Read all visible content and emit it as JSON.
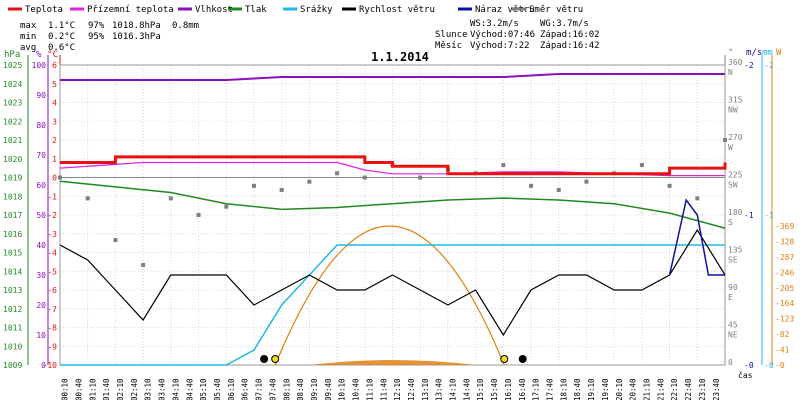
{
  "legend": [
    {
      "label": "Teplota",
      "color": "#e81010"
    },
    {
      "label": "Přízemní teplota",
      "color": "#e020e0"
    },
    {
      "label": "Vlhkost",
      "color": "#8a10c0"
    },
    {
      "label": "Tlak",
      "color": "#208a20"
    },
    {
      "label": "Srážky",
      "color": "#20b8e8"
    },
    {
      "label": "Rychlost větru",
      "color": "#000000"
    },
    {
      "label": "Náraz větru",
      "color": "#1010a0"
    },
    {
      "label": "Směr větru",
      "color": "#808080"
    }
  ],
  "stats": {
    "rows": [
      {
        "label": "max",
        "t": "1.1°C",
        "h": "97%",
        "p": "1018.8hPa",
        "r": "0.8mm"
      },
      {
        "label": "min",
        "t": "0.2°C",
        "h": "95%",
        "p": "1016.3hPa",
        "r": ""
      },
      {
        "label": "avg",
        "t": "0.6°C",
        "h": "",
        "p": "",
        "r": ""
      }
    ]
  },
  "sun": {
    "ws": "WS:3.2m/s",
    "wg": "WG:3.7m/s",
    "sun_label": "Slunce",
    "sunrise": "Východ:07:46",
    "sunset": "Západ:16:02",
    "moon_label": "Měsíc",
    "moonrise": "Východ:7:22",
    "moonset": "Západ:16:42"
  },
  "colors": {
    "temp": "#e81010",
    "ground": "#e020e0",
    "hum": "#8a10c0",
    "press": "#208a20",
    "rain": "#20b8e8",
    "wind": "#000000",
    "gust": "#1010a0",
    "dir": "#808080",
    "orange": "#e08010"
  },
  "chart_data": {
    "type": "line",
    "title": "1.1.2014",
    "xlabel": "čas",
    "x_ticks": [
      "00:10",
      "00:40",
      "01:10",
      "01:40",
      "02:10",
      "02:40",
      "03:10",
      "03:40",
      "04:10",
      "04:40",
      "05:10",
      "05:40",
      "06:10",
      "06:40",
      "07:10",
      "07:40",
      "08:10",
      "08:40",
      "09:10",
      "09:40",
      "10:10",
      "10:40",
      "11:10",
      "11:40",
      "12:10",
      "12:40",
      "13:10",
      "13:40",
      "14:10",
      "14:40",
      "15:10",
      "15:40",
      "16:10",
      "16:40",
      "17:10",
      "17:40",
      "18:10",
      "18:40",
      "19:10",
      "19:40",
      "20:10",
      "20:40",
      "21:10",
      "21:40",
      "22:10",
      "22:40",
      "23:10",
      "23:40"
    ],
    "axes": {
      "hpa": {
        "label": "hPa",
        "range": [
          1009,
          1025
        ],
        "ticks": [
          1009,
          1010,
          1011,
          1012,
          1013,
          1014,
          1015,
          1016,
          1017,
          1018,
          1019,
          1020,
          1021,
          1022,
          1023,
          1024,
          1025
        ]
      },
      "pct": {
        "label": "%",
        "range": [
          0,
          100
        ],
        "ticks": [
          0,
          10,
          20,
          30,
          40,
          50,
          60,
          70,
          80,
          90,
          100
        ]
      },
      "temp": {
        "label": "°C",
        "range": [
          -10,
          6
        ],
        "ticks": [
          -10,
          -9,
          -8,
          -7,
          -6,
          -5,
          -4,
          -3,
          -2,
          -1,
          0,
          1,
          2,
          3,
          4,
          5,
          6
        ]
      },
      "dir": {
        "label": "°",
        "ticks": [
          {
            "v": "360",
            "d": "N"
          },
          {
            "v": "315",
            "d": "NW"
          },
          {
            "v": "270",
            "d": "W"
          },
          {
            "v": "225",
            "d": "SW"
          },
          {
            "v": "180",
            "d": "S"
          },
          {
            "v": "135",
            "d": "SE"
          },
          {
            "v": "90",
            "d": "E"
          },
          {
            "v": "45",
            "d": "NE"
          },
          {
            "v": "0",
            "d": ""
          }
        ]
      },
      "ms": {
        "label": "m/s",
        "ticks": [
          "2",
          "1",
          "0"
        ]
      },
      "mm": {
        "label": "mm",
        "ticks": [
          "2",
          "1",
          "0"
        ]
      },
      "w": {
        "label": "W",
        "ticks": [
          "369",
          "328",
          "287",
          "246",
          "205",
          "164",
          "123",
          "82",
          "41",
          "0"
        ]
      }
    },
    "series": [
      {
        "name": "Teplota",
        "unit": "°C",
        "x": [
          0,
          2,
          3,
          10,
          11,
          12,
          14,
          16,
          17,
          18,
          20,
          22,
          24
        ],
        "y": [
          0.8,
          1.1,
          1.1,
          1.1,
          0.8,
          0.6,
          0.2,
          0.2,
          0.2,
          0.2,
          0.2,
          0.5,
          0.8
        ]
      },
      {
        "name": "Přízemní teplota",
        "unit": "°C",
        "x": [
          0,
          3,
          10,
          11,
          12,
          14,
          16,
          18,
          20,
          22,
          24
        ],
        "y": [
          0.5,
          0.8,
          0.8,
          0.4,
          0.2,
          0.2,
          0.3,
          0.3,
          0.2,
          0.1,
          0.1
        ]
      },
      {
        "name": "Vlhkost",
        "unit": "%",
        "x": [
          0,
          2,
          4,
          6,
          8,
          10,
          12,
          14,
          16,
          18,
          20,
          22,
          24
        ],
        "y": [
          95,
          95,
          95,
          95,
          96,
          96,
          96,
          96,
          96,
          97,
          97,
          97,
          97
        ]
      },
      {
        "name": "Tlak",
        "unit": "hPa",
        "x": [
          0,
          2,
          4,
          6,
          8,
          10,
          12,
          14,
          16,
          18,
          20,
          22,
          24
        ],
        "y": [
          1018.8,
          1018.5,
          1018.2,
          1017.6,
          1017.3,
          1017.4,
          1017.6,
          1017.8,
          1017.9,
          1017.8,
          1017.6,
          1017.1,
          1016.3
        ]
      },
      {
        "name": "Srážky",
        "unit": "mm",
        "x": [
          0,
          6,
          7,
          8,
          9,
          10,
          16,
          24
        ],
        "y": [
          0,
          0,
          0.1,
          0.4,
          0.6,
          0.8,
          0.8,
          0.8
        ]
      },
      {
        "name": "Rychlost větru",
        "unit": "m/s",
        "x": [
          0,
          1,
          2,
          3,
          4,
          5,
          6,
          7,
          8,
          9,
          10,
          11,
          12,
          13,
          14,
          15,
          16,
          17,
          18,
          19,
          20,
          21,
          22,
          23,
          24
        ],
        "y": [
          0.8,
          0.7,
          0.5,
          0.3,
          0.6,
          0.6,
          0.6,
          0.4,
          0.5,
          0.6,
          0.5,
          0.5,
          0.6,
          0.5,
          0.4,
          0.5,
          0.2,
          0.5,
          0.6,
          0.6,
          0.5,
          0.5,
          0.6,
          0.9,
          0.6
        ]
      },
      {
        "name": "Náraz větru",
        "unit": "m/s",
        "x": [
          22,
          22.6,
          23,
          23.4,
          24
        ],
        "y": [
          0.6,
          1.1,
          1.0,
          0.6,
          0.6
        ]
      },
      {
        "name": "Směr větru",
        "unit": "°",
        "x": [
          0,
          1,
          2,
          3,
          4,
          5,
          6,
          7,
          8,
          9,
          10,
          11,
          12,
          13,
          14,
          15,
          16,
          17,
          18,
          19,
          20,
          21,
          22,
          23,
          24
        ],
        "y": [
          225,
          200,
          150,
          120,
          200,
          180,
          190,
          215,
          210,
          220,
          230,
          225,
          240,
          225,
          235,
          230,
          240,
          215,
          210,
          220,
          230,
          240,
          215,
          200,
          270
        ]
      }
    ]
  }
}
